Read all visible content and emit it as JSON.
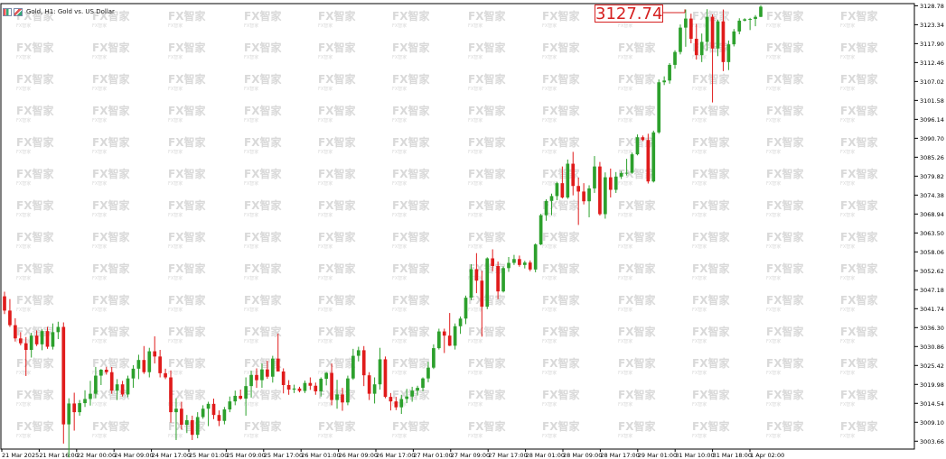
{
  "window": {
    "symbol_icon_1": "chart-icon",
    "symbol_icon_2": "indicator-icon",
    "title": "Gold, H1:  Gold vs. US Dollar"
  },
  "price_tag": "3127.74",
  "colors": {
    "bull": "#2ca02c",
    "bear": "#e01b1b",
    "axis": "#000000",
    "background": "#ffffff",
    "watermark": "#d9d9d9",
    "tag": "#d62020"
  },
  "watermark_text": "FX智家",
  "chart_data": {
    "type": "candlestick",
    "title": "Gold, H1:  Gold vs. US Dollar",
    "ylim": [
      3001.4,
      3129.4
    ],
    "y_ticks": [
      "3128.78",
      "3123.34",
      "3117.90",
      "3112.46",
      "3107.02",
      "3101.58",
      "3096.14",
      "3090.70",
      "3085.26",
      "3079.82",
      "3074.38",
      "3068.94",
      "3063.50",
      "3058.06",
      "3052.62",
      "3047.18",
      "3041.74",
      "3036.30",
      "3030.86",
      "3025.42",
      "3019.98",
      "3014.54",
      "3009.10",
      "3003.66"
    ],
    "x_ticks": [
      "21 Mar 2025",
      "21 Mar 16:00",
      "22 Mar 00:00",
      "24 Mar 09:00",
      "24 Mar 17:00",
      "25 Mar 01:00",
      "25 Mar 09:00",
      "25 Mar 17:00",
      "26 Mar 01:00",
      "26 Mar 09:00",
      "26 Mar 17:00",
      "27 Mar 01:00",
      "27 Mar 09:00",
      "27 Mar 17:00",
      "28 Mar 01:00",
      "28 Mar 09:00",
      "28 Mar 17:00",
      "29 Mar 01:00",
      "31 Mar 10:00",
      "31 Mar 18:00",
      "1 Apr 02:00"
    ],
    "last_price": 3127.74,
    "candles": [
      [
        3045.3,
        3046.6,
        3040.2,
        3041.2
      ],
      [
        3041.2,
        3044.5,
        3036.5,
        3037.0
      ],
      [
        3037.0,
        3039.0,
        3032.3,
        3033.2
      ],
      [
        3033.2,
        3035.0,
        3031.2,
        3031.8
      ],
      [
        3031.8,
        3033.6,
        3022.4,
        3029.9
      ],
      [
        3029.9,
        3034.8,
        3027.7,
        3034.0
      ],
      [
        3034.0,
        3035.5,
        3031.0,
        3031.5
      ],
      [
        3031.5,
        3035.8,
        3029.8,
        3035.3
      ],
      [
        3035.3,
        3036.5,
        3030.2,
        3030.8
      ],
      [
        3030.8,
        3037.5,
        3030.0,
        3035.0
      ],
      [
        3035.0,
        3038.0,
        3033.0,
        3036.5
      ],
      [
        3036.5,
        3037.8,
        3003.0,
        3008.5
      ],
      [
        3008.5,
        3016.0,
        2999.0,
        3014.5
      ],
      [
        3014.5,
        3017.6,
        3006.7,
        3012.0
      ],
      [
        3012.0,
        3015.5,
        3011.0,
        3014.6
      ],
      [
        3014.6,
        3018.3,
        3013.5,
        3015.8
      ],
      [
        3015.8,
        3021.0,
        3013.9,
        3017.3
      ],
      [
        3017.3,
        3025.0,
        3016.0,
        3022.5
      ],
      [
        3022.5,
        3024.4,
        3019.8,
        3024.2
      ],
      [
        3024.2,
        3025.0,
        3022.8,
        3023.5
      ],
      [
        3023.5,
        3025.0,
        3017.3,
        3018.2
      ],
      [
        3018.2,
        3021.5,
        3015.5,
        3020.0
      ],
      [
        3020.0,
        3021.0,
        3016.5,
        3017.1
      ],
      [
        3017.1,
        3022.5,
        3016.3,
        3021.7
      ],
      [
        3021.7,
        3025.5,
        3019.0,
        3024.5
      ],
      [
        3024.5,
        3028.5,
        3021.5,
        3027.0
      ],
      [
        3027.0,
        3031.0,
        3023.0,
        3023.5
      ],
      [
        3023.5,
        3030.5,
        3022.0,
        3029.5
      ],
      [
        3029.5,
        3033.8,
        3026.0,
        3028.0
      ],
      [
        3028.0,
        3029.9,
        3022.0,
        3023.2
      ],
      [
        3023.2,
        3024.5,
        3021.5,
        3022.0
      ],
      [
        3022.0,
        3024.0,
        3009.0,
        3012.0
      ],
      [
        3012.0,
        3016.0,
        3004.0,
        3013.0
      ],
      [
        3013.0,
        3015.0,
        3007.0,
        3008.4
      ],
      [
        3008.4,
        3011.2,
        3006.0,
        3009.7
      ],
      [
        3009.7,
        3011.0,
        3004.0,
        3005.5
      ],
      [
        3005.5,
        3012.0,
        3004.5,
        3010.6
      ],
      [
        3010.6,
        3014.0,
        3010.1,
        3013.0
      ],
      [
        3013.0,
        3015.0,
        3008.0,
        3014.4
      ],
      [
        3014.4,
        3015.9,
        3010.0,
        3011.2
      ],
      [
        3011.2,
        3012.5,
        3008.0,
        3009.5
      ],
      [
        3009.5,
        3013.5,
        3008.5,
        3012.8
      ],
      [
        3012.8,
        3016.5,
        3012.0,
        3015.1
      ],
      [
        3015.1,
        3018.2,
        3014.0,
        3016.7
      ],
      [
        3016.7,
        3018.5,
        3015.6,
        3015.9
      ],
      [
        3015.9,
        3022.0,
        3011.0,
        3019.5
      ],
      [
        3019.5,
        3023.9,
        3016.2,
        3022.7
      ],
      [
        3022.7,
        3024.6,
        3019.0,
        3021.2
      ],
      [
        3021.2,
        3026.0,
        3019.0,
        3024.3
      ],
      [
        3024.3,
        3026.8,
        3021.6,
        3022.2
      ],
      [
        3022.2,
        3028.2,
        3020.5,
        3027.4
      ],
      [
        3027.4,
        3034.6,
        3024.0,
        3023.7
      ],
      [
        3023.7,
        3024.6,
        3017.4,
        3019.8
      ],
      [
        3019.8,
        3021.2,
        3017.0,
        3018.5
      ],
      [
        3018.5,
        3019.9,
        3017.5,
        3018.8
      ],
      [
        3018.8,
        3019.3,
        3017.7,
        3018.1
      ],
      [
        3018.1,
        3021.1,
        3017.5,
        3020.4
      ],
      [
        3020.4,
        3022.0,
        3018.4,
        3019.6
      ],
      [
        3019.6,
        3020.5,
        3017.0,
        3018.0
      ],
      [
        3018.0,
        3022.0,
        3016.5,
        3021.6
      ],
      [
        3021.6,
        3023.5,
        3019.7,
        3023.3
      ],
      [
        3023.3,
        3026.0,
        3014.0,
        3015.5
      ],
      [
        3015.5,
        3021.3,
        3013.0,
        3017.1
      ],
      [
        3017.1,
        3019.0,
        3012.4,
        3014.8
      ],
      [
        3014.8,
        3022.5,
        3014.0,
        3021.7
      ],
      [
        3021.7,
        3030.2,
        3021.3,
        3028.2
      ],
      [
        3028.2,
        3030.8,
        3026.6,
        3029.8
      ],
      [
        3029.8,
        3031.0,
        3019.5,
        3022.6
      ],
      [
        3022.6,
        3023.5,
        3015.5,
        3017.3
      ],
      [
        3017.3,
        3022.0,
        3014.5,
        3020.0
      ],
      [
        3020.0,
        3030.5,
        3018.5,
        3027.2
      ],
      [
        3027.2,
        3028.0,
        3016.0,
        3016.4
      ],
      [
        3016.4,
        3017.5,
        3012.5,
        3015.1
      ],
      [
        3015.1,
        3016.4,
        3012.6,
        3013.4
      ],
      [
        3013.4,
        3017.0,
        3011.5,
        3015.8
      ],
      [
        3015.8,
        3018.7,
        3014.6,
        3016.5
      ],
      [
        3016.5,
        3019.3,
        3015.0,
        3018.2
      ],
      [
        3018.2,
        3019.6,
        3016.8,
        3019.0
      ],
      [
        3019.0,
        3022.0,
        3018.0,
        3021.7
      ],
      [
        3021.7,
        3026.5,
        3020.6,
        3024.8
      ],
      [
        3024.8,
        3031.5,
        3024.4,
        3030.4
      ],
      [
        3030.4,
        3036.0,
        3030.0,
        3035.2
      ],
      [
        3035.2,
        3036.0,
        3029.0,
        3034.0
      ],
      [
        3034.0,
        3040.5,
        3031.0,
        3031.1
      ],
      [
        3031.1,
        3037.5,
        3030.0,
        3036.7
      ],
      [
        3036.7,
        3039.5,
        3034.5,
        3038.9
      ],
      [
        3038.9,
        3045.5,
        3037.3,
        3044.9
      ],
      [
        3044.9,
        3054.5,
        3044.2,
        3053.1
      ],
      [
        3053.1,
        3057.7,
        3046.2,
        3049.8
      ],
      [
        3049.8,
        3052.6,
        3033.7,
        3042.3
      ],
      [
        3042.3,
        3056.5,
        3041.6,
        3056.2
      ],
      [
        3056.2,
        3058.8,
        3052.5,
        3054.0
      ],
      [
        3054.0,
        3055.3,
        3044.5,
        3046.7
      ],
      [
        3046.7,
        3053.9,
        3046.4,
        3053.4
      ],
      [
        3053.4,
        3056.6,
        3052.3,
        3054.9
      ],
      [
        3054.9,
        3057.2,
        3054.3,
        3056.0
      ],
      [
        3056.0,
        3057.0,
        3053.8,
        3054.3
      ],
      [
        3054.3,
        3055.5,
        3053.3,
        3055.0
      ],
      [
        3055.0,
        3055.6,
        3052.5,
        3053.0
      ],
      [
        3053.0,
        3060.5,
        3052.2,
        3060.2
      ],
      [
        3060.2,
        3069.0,
        3060.0,
        3068.6
      ],
      [
        3068.6,
        3073.2,
        3067.0,
        3072.7
      ],
      [
        3072.7,
        3074.8,
        3068.6,
        3074.1
      ],
      [
        3074.1,
        3078.2,
        3072.9,
        3077.8
      ],
      [
        3077.8,
        3082.6,
        3073.4,
        3073.7
      ],
      [
        3073.7,
        3084.6,
        3073.3,
        3083.4
      ],
      [
        3083.4,
        3086.8,
        3074.3,
        3077.0
      ],
      [
        3077.0,
        3079.4,
        3065.8,
        3075.4
      ],
      [
        3075.4,
        3077.8,
        3071.7,
        3072.6
      ],
      [
        3072.6,
        3077.2,
        3068.0,
        3076.3
      ],
      [
        3076.3,
        3085.6,
        3075.0,
        3082.6
      ],
      [
        3082.6,
        3083.9,
        3068.5,
        3068.9
      ],
      [
        3068.9,
        3080.9,
        3067.6,
        3079.5
      ],
      [
        3079.5,
        3082.0,
        3073.7,
        3075.9
      ],
      [
        3075.9,
        3081.0,
        3075.0,
        3079.7
      ],
      [
        3079.7,
        3081.3,
        3079.0,
        3080.7
      ],
      [
        3080.7,
        3084.8,
        3080.0,
        3080.8
      ],
      [
        3080.8,
        3086.6,
        3080.5,
        3086.1
      ],
      [
        3086.1,
        3091.8,
        3085.8,
        3091.0
      ],
      [
        3091.0,
        3091.5,
        3089.9,
        3090.2
      ],
      [
        3090.2,
        3092.0,
        3077.7,
        3078.3
      ],
      [
        3078.3,
        3092.9,
        3078.0,
        3092.4
      ],
      [
        3092.4,
        3107.6,
        3092.0,
        3106.8
      ],
      [
        3106.8,
        3108.5,
        3106.0,
        3107.3
      ],
      [
        3107.3,
        3112.3,
        3106.4,
        3111.8
      ],
      [
        3111.8,
        3116.0,
        3110.7,
        3115.5
      ],
      [
        3115.5,
        3123.4,
        3114.8,
        3122.5
      ],
      [
        3122.5,
        3127.7,
        3117.0,
        3125.1
      ],
      [
        3125.1,
        3126.5,
        3118.0,
        3119.3
      ],
      [
        3119.3,
        3123.6,
        3113.3,
        3114.6
      ],
      [
        3114.6,
        3120.8,
        3112.6,
        3118.4
      ],
      [
        3118.4,
        3127.8,
        3115.9,
        3125.6
      ],
      [
        3125.6,
        3126.3,
        3101.0,
        3116.5
      ],
      [
        3116.5,
        3124.8,
        3114.3,
        3124.3
      ],
      [
        3124.3,
        3127.7,
        3110.0,
        3112.6
      ],
      [
        3112.6,
        3118.8,
        3110.3,
        3117.7
      ],
      [
        3117.7,
        3122.1,
        3117.1,
        3121.4
      ],
      [
        3121.4,
        3125.2,
        3120.6,
        3124.5
      ],
      [
        3124.5,
        3125.2,
        3124.3,
        3124.9
      ],
      [
        3124.9,
        3125.3,
        3121.8,
        3125.0
      ],
      [
        3125.0,
        3126.1,
        3122.9,
        3125.6
      ],
      [
        3125.6,
        3128.9,
        3125.5,
        3128.5
      ]
    ]
  }
}
